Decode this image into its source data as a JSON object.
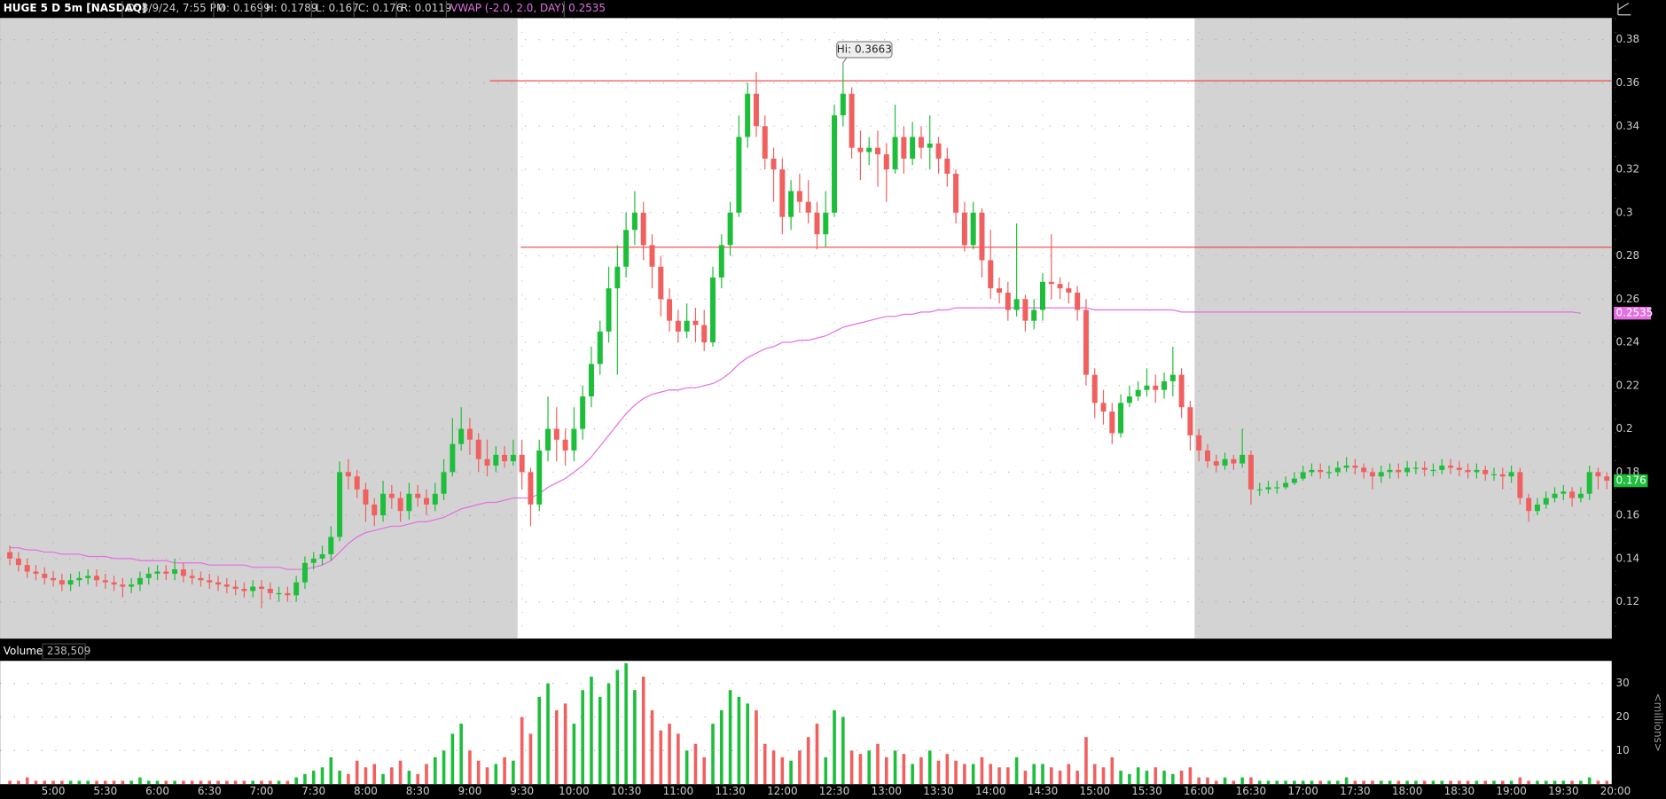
{
  "chart_data": {
    "type": "candlestick",
    "title": "HUGE 5 D 5m [NASDAQ]",
    "header_fields": [
      "D: 8/9/24, 7:55 PM",
      "O: 0.1699",
      "H: 0.1789",
      "L: 0.167",
      "C: 0.176",
      "R: 0.0119"
    ],
    "up_color": "#1dbf3a",
    "down_color": "#f0605f",
    "grid": true,
    "ylim": [
      0.103,
      0.39
    ],
    "yticks": [
      0.12,
      0.14,
      0.16,
      0.18,
      0.2,
      0.22,
      0.24,
      0.26,
      0.28,
      0.3,
      0.32,
      0.34,
      0.36,
      0.38
    ],
    "categories": [
      null,
      null,
      null,
      null,
      null,
      "5:00",
      null,
      null,
      null,
      null,
      null,
      "5:30",
      null,
      null,
      null,
      null,
      null,
      "6:00",
      null,
      null,
      null,
      null,
      null,
      "6:30",
      null,
      null,
      null,
      null,
      null,
      "7:00",
      null,
      null,
      null,
      null,
      null,
      "7:30",
      null,
      null,
      null,
      null,
      null,
      "8:00",
      null,
      null,
      null,
      null,
      null,
      "8:30",
      null,
      null,
      null,
      null,
      null,
      "9:00",
      null,
      null,
      null,
      null,
      null,
      "9:30",
      null,
      null,
      null,
      null,
      null,
      "10:00",
      null,
      null,
      null,
      null,
      null,
      "10:30",
      null,
      null,
      null,
      null,
      null,
      "11:00",
      null,
      null,
      null,
      null,
      null,
      "11:30",
      null,
      null,
      null,
      null,
      null,
      "12:00",
      null,
      null,
      null,
      null,
      null,
      "12:30",
      null,
      null,
      null,
      null,
      null,
      "13:00",
      null,
      null,
      null,
      null,
      null,
      "13:30",
      null,
      null,
      null,
      null,
      null,
      "14:00",
      null,
      null,
      null,
      null,
      null,
      "14:30",
      null,
      null,
      null,
      null,
      null,
      "15:00",
      null,
      null,
      null,
      null,
      null,
      "15:30",
      null,
      null,
      null,
      null,
      null,
      "16:00",
      null,
      null,
      null,
      null,
      null,
      "16:30",
      null,
      null,
      null,
      null,
      null,
      "17:00",
      null,
      null,
      null,
      null,
      null,
      "17:30",
      null,
      null,
      null,
      null,
      null,
      "18:00",
      null,
      null,
      null,
      null,
      null,
      "18:30",
      null,
      null,
      null,
      null,
      null,
      "19:00",
      null,
      null,
      null,
      null,
      null,
      "19:30",
      null,
      null,
      null,
      null,
      null,
      "20:00"
    ],
    "open": [
      0.143,
      0.14,
      0.137,
      0.134,
      0.133,
      0.131,
      0.13,
      0.128,
      0.13,
      0.131,
      0.132,
      0.13,
      0.129,
      0.128,
      0.127,
      0.128,
      0.131,
      0.133,
      0.134,
      0.133,
      0.135,
      0.132,
      0.131,
      0.13,
      0.129,
      0.128,
      0.127,
      0.126,
      0.125,
      0.127,
      0.126,
      0.124,
      0.124,
      0.123,
      0.129,
      0.138,
      0.14,
      0.142,
      0.15,
      0.18,
      0.178,
      0.172,
      0.165,
      0.16,
      0.17,
      0.168,
      0.162,
      0.17,
      0.168,
      0.165,
      0.17,
      0.18,
      0.193,
      0.2,
      0.195,
      0.186,
      0.183,
      0.188,
      0.185,
      0.188,
      0.18,
      0.165,
      0.19,
      0.2,
      0.195,
      0.19,
      0.2,
      0.215,
      0.23,
      0.245,
      0.265,
      0.275,
      0.292,
      0.3,
      0.285,
      0.275,
      0.26,
      0.25,
      0.245,
      0.25,
      0.248,
      0.24,
      0.27,
      0.285,
      0.3,
      0.335,
      0.355,
      0.34,
      0.325,
      0.32,
      0.298,
      0.31,
      0.305,
      0.3,
      0.29,
      0.3,
      0.345,
      0.355,
      0.33,
      0.328,
      0.33,
      0.327,
      0.32,
      0.335,
      0.325,
      0.335,
      0.33,
      0.332,
      0.325,
      0.318,
      0.3,
      0.285,
      0.3,
      0.278,
      0.265,
      0.263,
      0.255,
      0.26,
      0.25,
      0.255,
      0.268,
      0.267,
      0.265,
      0.263,
      0.255,
      0.225,
      0.212,
      0.208,
      0.198,
      0.212,
      0.215,
      0.218,
      0.22,
      0.218,
      0.222,
      0.225,
      0.21,
      0.197,
      0.19,
      0.185,
      0.183,
      0.186,
      0.184,
      0.188,
      0.172,
      0.172,
      0.173,
      0.173,
      0.175,
      0.177,
      0.18,
      0.181,
      0.18,
      0.18,
      0.182,
      0.183,
      0.182,
      0.18,
      0.178,
      0.18,
      0.181,
      0.18,
      0.182,
      0.182,
      0.181,
      0.181,
      0.183,
      0.182,
      0.181,
      0.18,
      0.181,
      0.179,
      0.179,
      0.178,
      0.18,
      0.168,
      0.162,
      0.165,
      0.168,
      0.17,
      0.171,
      0.168,
      0.17,
      0.18,
      0.178,
      null
    ],
    "high": [
      0.146,
      0.143,
      0.14,
      0.137,
      0.136,
      0.134,
      0.133,
      0.133,
      0.134,
      0.135,
      0.135,
      0.133,
      0.132,
      0.131,
      0.131,
      0.134,
      0.136,
      0.137,
      0.137,
      0.14,
      0.138,
      0.135,
      0.134,
      0.133,
      0.132,
      0.131,
      0.13,
      0.129,
      0.13,
      0.13,
      0.129,
      0.127,
      0.127,
      0.132,
      0.141,
      0.143,
      0.146,
      0.155,
      0.185,
      0.186,
      0.181,
      0.175,
      0.168,
      0.176,
      0.174,
      0.171,
      0.175,
      0.174,
      0.172,
      0.175,
      0.186,
      0.205,
      0.21,
      0.205,
      0.198,
      0.195,
      0.192,
      0.192,
      0.195,
      0.195,
      0.182,
      0.195,
      0.215,
      0.21,
      0.2,
      0.21,
      0.22,
      0.238,
      0.25,
      0.275,
      0.285,
      0.3,
      0.31,
      0.305,
      0.29,
      0.28,
      0.265,
      0.255,
      0.258,
      0.256,
      0.255,
      0.275,
      0.29,
      0.305,
      0.345,
      0.36,
      0.365,
      0.345,
      0.33,
      0.325,
      0.315,
      0.318,
      0.315,
      0.305,
      0.31,
      0.35,
      0.3663,
      0.358,
      0.338,
      0.335,
      0.338,
      0.332,
      0.35,
      0.34,
      0.342,
      0.34,
      0.345,
      0.335,
      0.33,
      0.32,
      0.305,
      0.305,
      0.302,
      0.292,
      0.27,
      0.268,
      0.295,
      0.262,
      0.26,
      0.272,
      0.29,
      0.27,
      0.268,
      0.266,
      0.26,
      0.228,
      0.218,
      0.212,
      0.216,
      0.22,
      0.222,
      0.228,
      0.225,
      0.226,
      0.238,
      0.228,
      0.213,
      0.2,
      0.193,
      0.188,
      0.189,
      0.188,
      0.2,
      0.19,
      0.175,
      0.176,
      0.176,
      0.178,
      0.18,
      0.183,
      0.184,
      0.184,
      0.183,
      0.185,
      0.187,
      0.186,
      0.184,
      0.182,
      0.183,
      0.184,
      0.184,
      0.185,
      0.185,
      0.185,
      0.184,
      0.186,
      0.186,
      0.185,
      0.184,
      0.184,
      0.183,
      0.182,
      0.182,
      0.183,
      0.182,
      0.17,
      0.168,
      0.171,
      0.173,
      0.174,
      0.173,
      0.173,
      0.183,
      0.182,
      0.18,
      null
    ],
    "low": [
      0.137,
      0.134,
      0.131,
      0.13,
      0.128,
      0.127,
      0.125,
      0.125,
      0.127,
      0.128,
      0.127,
      0.126,
      0.125,
      0.122,
      0.124,
      0.125,
      0.128,
      0.13,
      0.13,
      0.13,
      0.129,
      0.128,
      0.127,
      0.126,
      0.125,
      0.124,
      0.123,
      0.122,
      0.122,
      0.117,
      0.121,
      0.12,
      0.12,
      0.12,
      0.126,
      0.135,
      0.137,
      0.139,
      0.148,
      0.172,
      0.168,
      0.157,
      0.155,
      0.157,
      0.163,
      0.157,
      0.158,
      0.164,
      0.16,
      0.162,
      0.167,
      0.178,
      0.19,
      0.188,
      0.18,
      0.178,
      0.18,
      0.182,
      0.183,
      0.172,
      0.155,
      0.162,
      0.185,
      0.185,
      0.183,
      0.185,
      0.195,
      0.21,
      0.225,
      0.24,
      0.225,
      0.27,
      0.285,
      0.278,
      0.265,
      0.252,
      0.245,
      0.24,
      0.242,
      0.24,
      0.236,
      0.238,
      0.265,
      0.28,
      0.298,
      0.33,
      0.335,
      0.32,
      0.305,
      0.29,
      0.292,
      0.3,
      0.295,
      0.283,
      0.284,
      0.298,
      0.34,
      0.325,
      0.315,
      0.322,
      0.312,
      0.305,
      0.318,
      0.318,
      0.322,
      0.325,
      0.32,
      0.318,
      0.312,
      0.295,
      0.282,
      0.283,
      0.27,
      0.26,
      0.258,
      0.25,
      0.252,
      0.245,
      0.246,
      0.25,
      0.26,
      0.26,
      0.258,
      0.25,
      0.22,
      0.205,
      0.202,
      0.193,
      0.196,
      0.21,
      0.213,
      0.215,
      0.212,
      0.214,
      0.215,
      0.205,
      0.19,
      0.185,
      0.182,
      0.18,
      0.181,
      0.181,
      0.182,
      0.165,
      0.169,
      0.17,
      0.17,
      0.172,
      0.174,
      0.176,
      0.178,
      0.177,
      0.177,
      0.178,
      0.18,
      0.179,
      0.177,
      0.172,
      0.175,
      0.177,
      0.177,
      0.178,
      0.179,
      0.178,
      0.178,
      0.179,
      0.179,
      0.178,
      0.177,
      0.177,
      0.176,
      0.176,
      0.172,
      0.175,
      0.165,
      0.157,
      0.16,
      0.163,
      0.166,
      0.167,
      0.164,
      0.166,
      0.167,
      0.172,
      0.172,
      null
    ],
    "close": [
      0.14,
      0.137,
      0.134,
      0.133,
      0.131,
      0.13,
      0.128,
      0.13,
      0.131,
      0.132,
      0.13,
      0.129,
      0.128,
      0.127,
      0.128,
      0.131,
      0.133,
      0.134,
      0.133,
      0.135,
      0.132,
      0.131,
      0.13,
      0.129,
      0.128,
      0.127,
      0.126,
      0.125,
      0.127,
      0.126,
      0.124,
      0.124,
      0.123,
      0.129,
      0.138,
      0.14,
      0.142,
      0.15,
      0.18,
      0.178,
      0.172,
      0.165,
      0.16,
      0.17,
      0.168,
      0.162,
      0.17,
      0.168,
      0.165,
      0.17,
      0.18,
      0.193,
      0.2,
      0.195,
      0.186,
      0.183,
      0.188,
      0.185,
      0.188,
      0.18,
      0.165,
      0.19,
      0.2,
      0.195,
      0.19,
      0.2,
      0.215,
      0.23,
      0.245,
      0.265,
      0.275,
      0.292,
      0.3,
      0.285,
      0.275,
      0.26,
      0.25,
      0.245,
      0.25,
      0.248,
      0.24,
      0.27,
      0.285,
      0.3,
      0.335,
      0.355,
      0.34,
      0.325,
      0.32,
      0.298,
      0.31,
      0.305,
      0.3,
      0.29,
      0.3,
      0.345,
      0.355,
      0.33,
      0.328,
      0.33,
      0.327,
      0.32,
      0.335,
      0.325,
      0.335,
      0.33,
      0.332,
      0.325,
      0.318,
      0.3,
      0.285,
      0.3,
      0.278,
      0.265,
      0.263,
      0.255,
      0.26,
      0.25,
      0.255,
      0.268,
      0.267,
      0.265,
      0.263,
      0.255,
      0.225,
      0.212,
      0.208,
      0.198,
      0.212,
      0.215,
      0.218,
      0.22,
      0.218,
      0.222,
      0.225,
      0.21,
      0.197,
      0.19,
      0.185,
      0.183,
      0.186,
      0.184,
      0.188,
      0.172,
      0.172,
      0.173,
      0.173,
      0.175,
      0.177,
      0.18,
      0.181,
      0.18,
      0.18,
      0.182,
      0.183,
      0.182,
      0.18,
      0.178,
      0.18,
      0.181,
      0.18,
      0.182,
      0.182,
      0.181,
      0.181,
      0.183,
      0.182,
      0.181,
      0.18,
      0.181,
      0.179,
      0.179,
      0.178,
      0.18,
      0.168,
      0.162,
      0.165,
      0.168,
      0.17,
      0.171,
      0.168,
      0.17,
      0.18,
      0.178,
      0.176,
      null
    ],
    "last_price": 0.176,
    "vwap": {
      "name": "VWAP (-2.0, 2.0, DAY)",
      "color": "#e36fe3",
      "values": [
        0.145,
        0.145,
        0.144,
        0.144,
        0.143,
        0.143,
        0.142,
        0.142,
        0.142,
        0.141,
        0.141,
        0.141,
        0.14,
        0.14,
        0.14,
        0.139,
        0.139,
        0.139,
        0.139,
        0.138,
        0.138,
        0.138,
        0.138,
        0.137,
        0.137,
        0.137,
        0.137,
        0.137,
        0.136,
        0.136,
        0.136,
        0.136,
        0.135,
        0.135,
        0.135,
        0.136,
        0.137,
        0.139,
        0.143,
        0.147,
        0.15,
        0.152,
        0.153,
        0.154,
        0.155,
        0.155,
        0.156,
        0.157,
        0.157,
        0.158,
        0.159,
        0.161,
        0.163,
        0.164,
        0.165,
        0.166,
        0.166,
        0.167,
        0.168,
        0.168,
        0.168,
        0.17,
        0.173,
        0.175,
        0.177,
        0.18,
        0.183,
        0.187,
        0.192,
        0.197,
        0.202,
        0.207,
        0.211,
        0.214,
        0.216,
        0.217,
        0.218,
        0.218,
        0.219,
        0.219,
        0.22,
        0.221,
        0.223,
        0.226,
        0.23,
        0.233,
        0.235,
        0.237,
        0.238,
        0.24,
        0.24,
        0.241,
        0.241,
        0.242,
        0.243,
        0.245,
        0.247,
        0.248,
        0.249,
        0.25,
        0.251,
        0.252,
        0.252,
        0.253,
        0.253,
        0.254,
        0.254,
        0.255,
        0.255,
        0.256,
        0.256,
        0.256,
        0.256,
        0.256,
        0.256,
        0.256,
        0.256,
        0.256,
        0.256,
        0.256,
        0.256,
        0.256,
        0.256,
        0.256,
        0.256,
        0.255,
        0.255,
        0.255,
        0.255,
        0.255,
        0.255,
        0.255,
        0.255,
        0.255,
        0.255,
        0.254,
        0.254,
        0.254,
        0.254,
        0.254,
        0.254,
        0.254,
        0.254,
        0.254,
        0.254,
        0.254,
        0.254,
        0.254,
        0.254,
        0.254,
        0.254,
        0.254,
        0.254,
        0.254,
        0.254,
        0.254,
        0.254,
        0.254,
        0.254,
        0.254,
        0.254,
        0.254,
        0.254,
        0.254,
        0.254,
        0.254,
        0.254,
        0.254,
        0.254,
        0.254,
        0.254,
        0.254,
        0.254,
        0.254,
        0.254,
        0.254,
        0.254,
        0.254,
        0.254,
        0.254,
        0.254,
        0.2535,
        null,
        null
      ]
    },
    "price_lines": [
      0.361,
      0.284
    ],
    "price_line_color": "#f04040",
    "annotation": "Hi: 0.3663",
    "volume_title": "Volume",
    "volume_total": "238,509",
    "volume_unit": "<millions>",
    "volume_ylim": [
      0,
      36.7
    ],
    "volume_yticks": [
      10,
      20,
      30
    ],
    "volume": [
      1,
      1,
      2,
      1,
      1,
      1,
      1,
      1,
      1,
      1,
      1,
      1,
      1,
      1,
      1,
      2,
      1,
      1,
      1,
      1,
      1,
      1,
      1,
      1,
      1,
      1,
      1,
      1,
      1,
      1,
      1,
      1,
      1,
      2,
      3,
      4,
      5,
      8,
      4,
      3,
      7,
      5,
      6,
      3,
      5,
      7,
      4,
      3,
      6,
      8,
      10,
      15,
      18,
      10,
      7,
      5,
      6,
      8,
      7,
      20,
      15,
      26,
      30,
      22,
      24,
      18,
      28,
      32,
      26,
      30,
      34,
      36,
      28,
      32,
      22,
      16,
      18,
      15,
      10,
      12,
      8,
      18,
      22,
      28,
      26,
      24,
      22,
      12,
      10,
      8,
      7,
      10,
      14,
      18,
      8,
      22,
      20,
      10,
      9,
      10,
      12,
      8,
      10,
      9,
      6,
      8,
      10,
      7,
      9,
      7,
      6,
      6,
      8,
      6,
      5,
      5,
      8,
      4,
      6,
      6,
      5,
      4,
      6,
      4,
      14,
      6,
      5,
      8,
      4,
      3,
      5,
      4,
      5,
      4,
      3,
      4,
      5,
      2,
      2,
      1,
      2,
      1,
      2,
      2,
      1,
      1,
      1,
      1,
      1,
      1,
      1,
      1,
      1,
      1,
      2,
      1,
      1,
      1,
      1,
      1,
      1,
      1,
      1,
      1,
      1,
      1,
      1,
      1,
      1,
      1,
      1,
      1,
      1,
      1,
      2,
      1,
      1,
      1,
      1,
      1,
      1,
      1,
      2,
      1,
      1,
      null
    ]
  }
}
